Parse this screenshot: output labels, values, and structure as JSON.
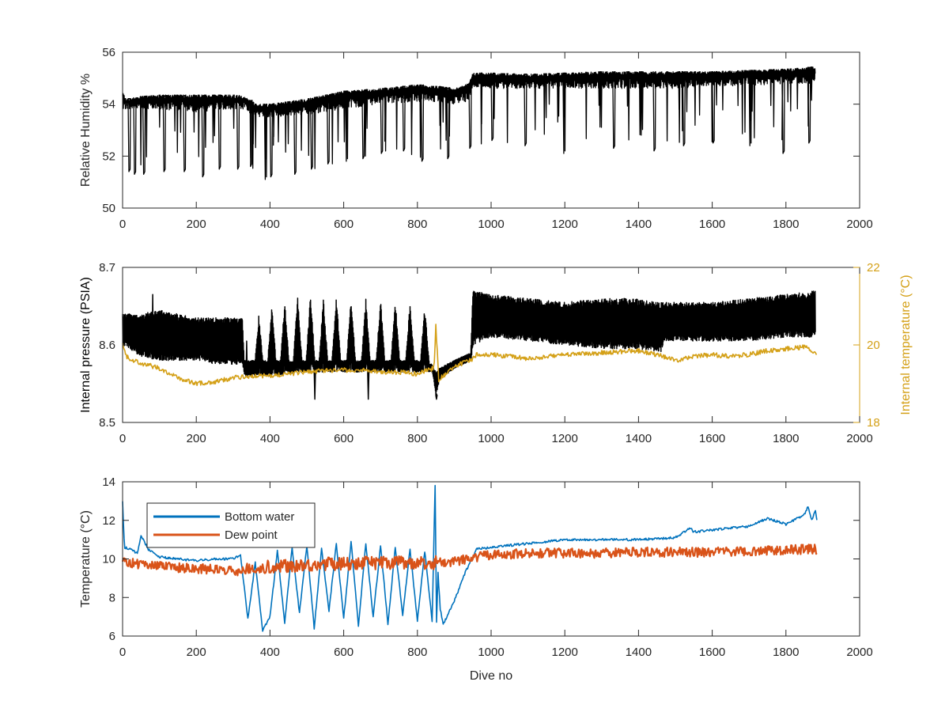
{
  "chart_data": [
    {
      "type": "line",
      "panel": "top",
      "title": "",
      "xlabel": "",
      "ylabel": "Relative Humidity %",
      "xlim": [
        0,
        2000
      ],
      "ylim": [
        50,
        56
      ],
      "xticks": [
        "0",
        "200",
        "400",
        "600",
        "800",
        "1000",
        "1200",
        "1400",
        "1600",
        "1800",
        "2000"
      ],
      "yticks": [
        "50",
        "52",
        "54",
        "56"
      ],
      "grid": false,
      "series": [
        {
          "color": "#000000",
          "style": "dense-spiky",
          "x": [
            0,
            10,
            50,
            100,
            200,
            300,
            330,
            360,
            400,
            500,
            600,
            700,
            800,
            850,
            900,
            940,
            950,
            1000,
            1100,
            1200,
            1300,
            1400,
            1500,
            1600,
            1700,
            1800,
            1850,
            1880
          ],
          "upper": [
            54.45,
            54.2,
            54.3,
            54.35,
            54.35,
            54.35,
            54.3,
            54.0,
            54.0,
            54.2,
            54.5,
            54.6,
            54.75,
            54.7,
            54.6,
            54.8,
            55.2,
            55.2,
            55.15,
            55.2,
            55.25,
            55.25,
            55.25,
            55.25,
            55.3,
            55.35,
            55.4,
            55.45
          ],
          "base": [
            53.8,
            53.8,
            53.8,
            53.8,
            53.7,
            53.8,
            53.8,
            53.5,
            53.5,
            53.6,
            53.8,
            54.0,
            54.1,
            54.1,
            54.0,
            54.1,
            54.6,
            54.6,
            54.6,
            54.6,
            54.6,
            54.6,
            54.6,
            54.7,
            54.7,
            54.8,
            54.8,
            54.8
          ],
          "dips": [
            [
              15,
              51.4
            ],
            [
              30,
              51.3
            ],
            [
              55,
              51.3
            ],
            [
              110,
              51.4
            ],
            [
              165,
              51.4
            ],
            [
              215,
              51.2
            ],
            [
              260,
              51.5
            ],
            [
              310,
              51.5
            ],
            [
              345,
              51.6
            ],
            [
              385,
              51.1
            ],
            [
              400,
              51.2
            ],
            [
              465,
              51.3
            ],
            [
              510,
              51.5
            ],
            [
              555,
              51.7
            ],
            [
              605,
              51.8
            ],
            [
              650,
              51.9
            ],
            [
              700,
              52.1
            ],
            [
              760,
              52.2
            ],
            [
              810,
              51.8
            ],
            [
              880,
              51.9
            ],
            [
              940,
              52.3
            ],
            [
              1000,
              52.6
            ],
            [
              1090,
              52.4
            ],
            [
              1195,
              52.1
            ],
            [
              1330,
              52.3
            ],
            [
              1440,
              52.2
            ],
            [
              1520,
              52.4
            ],
            [
              1600,
              52.5
            ],
            [
              1700,
              52.4
            ],
            [
              1790,
              52.1
            ],
            [
              1860,
              52.5
            ]
          ]
        }
      ]
    },
    {
      "type": "line",
      "panel": "middle",
      "title": "",
      "xlabel": "",
      "ylabel": "Internal pressure (PSIA)",
      "ylabel_right": "Internal temperature (°C)",
      "xlim": [
        0,
        2000
      ],
      "ylim": [
        8.5,
        8.7
      ],
      "ylim_right": [
        18,
        22
      ],
      "xticks": [
        "0",
        "200",
        "400",
        "600",
        "800",
        "1000",
        "1200",
        "1400",
        "1600",
        "1800",
        "2000"
      ],
      "yticks": [
        "8.5",
        "8.6",
        "8.7"
      ],
      "yticks_right": [
        "18",
        "20",
        "22"
      ],
      "right_axis_color": "#D4A017",
      "grid": false,
      "series": [
        {
          "axis": "left",
          "color": "#000000",
          "style": "dense-band",
          "x": [
            0,
            50,
            100,
            150,
            200,
            250,
            300,
            325,
            330,
            400,
            500,
            600,
            700,
            800,
            840,
            850,
            860,
            900,
            945,
            950,
            1000,
            1100,
            1200,
            1300,
            1400,
            1460,
            1470,
            1500,
            1600,
            1700,
            1800,
            1880
          ],
          "low": [
            8.6,
            8.585,
            8.58,
            8.58,
            8.58,
            8.575,
            8.575,
            8.575,
            8.56,
            8.56,
            8.565,
            8.565,
            8.565,
            8.565,
            8.565,
            8.535,
            8.555,
            8.57,
            8.58,
            8.6,
            8.61,
            8.605,
            8.6,
            8.595,
            8.595,
            8.59,
            8.605,
            8.605,
            8.605,
            8.605,
            8.61,
            8.61
          ],
          "high": [
            8.64,
            8.64,
            8.645,
            8.64,
            8.635,
            8.635,
            8.635,
            8.635,
            8.58,
            8.58,
            8.58,
            8.58,
            8.58,
            8.58,
            8.575,
            8.565,
            8.57,
            8.58,
            8.59,
            8.67,
            8.665,
            8.66,
            8.655,
            8.66,
            8.66,
            8.655,
            8.655,
            8.655,
            8.655,
            8.66,
            8.665,
            8.67
          ],
          "bursts": [
            [
              370,
              8.64
            ],
            [
              405,
              8.655
            ],
            [
              440,
              8.66
            ],
            [
              475,
              8.665
            ],
            [
              510,
              8.665
            ],
            [
              545,
              8.66
            ],
            [
              580,
              8.665
            ],
            [
              620,
              8.665
            ],
            [
              660,
              8.66
            ],
            [
              700,
              8.66
            ],
            [
              740,
              8.66
            ],
            [
              780,
              8.655
            ],
            [
              820,
              8.65
            ]
          ]
        },
        {
          "axis": "right",
          "color": "#D4A017",
          "x": [
            0,
            10,
            30,
            60,
            100,
            150,
            200,
            250,
            300,
            350,
            400,
            450,
            500,
            560,
            600,
            650,
            700,
            750,
            800,
            845,
            850,
            858,
            870,
            900,
            945,
            960,
            1000,
            1050,
            1100,
            1200,
            1300,
            1400,
            1450,
            1500,
            1550,
            1600,
            1650,
            1700,
            1750,
            1800,
            1850,
            1885
          ],
          "values": [
            20.1,
            19.7,
            19.6,
            19.5,
            19.4,
            19.15,
            19.0,
            19.05,
            19.15,
            19.2,
            19.2,
            19.25,
            19.3,
            19.35,
            19.35,
            19.35,
            19.3,
            19.3,
            19.25,
            19.4,
            20.5,
            19.1,
            19.2,
            19.45,
            19.6,
            19.75,
            19.75,
            19.7,
            19.65,
            19.75,
            19.8,
            19.85,
            19.75,
            19.6,
            19.7,
            19.75,
            19.7,
            19.75,
            19.85,
            19.9,
            19.95,
            19.8
          ]
        }
      ]
    },
    {
      "type": "line",
      "panel": "bottom",
      "title": "",
      "xlabel": "Dive no",
      "ylabel": "Temperature (°C)",
      "xlim": [
        0,
        2000
      ],
      "ylim": [
        6,
        14
      ],
      "xticks": [
        "0",
        "200",
        "400",
        "600",
        "800",
        "1000",
        "1200",
        "1400",
        "1600",
        "1800",
        "2000"
      ],
      "yticks": [
        "6",
        "8",
        "10",
        "12",
        "14"
      ],
      "grid": false,
      "legend": {
        "location": "top-left"
      },
      "series": [
        {
          "name": "Bottom water",
          "color": "#0072BD",
          "x": [
            0,
            5,
            20,
            40,
            50,
            70,
            100,
            150,
            200,
            250,
            300,
            320,
            340,
            360,
            380,
            400,
            420,
            440,
            460,
            480,
            500,
            520,
            540,
            560,
            580,
            600,
            620,
            640,
            660,
            680,
            700,
            720,
            740,
            760,
            780,
            800,
            820,
            840,
            848,
            852,
            856,
            862,
            870,
            900,
            930,
            960,
            1000,
            1100,
            1200,
            1300,
            1400,
            1500,
            1540,
            1550,
            1600,
            1700,
            1750,
            1800,
            1850,
            1860,
            1870,
            1880,
            1885
          ],
          "values": [
            13.0,
            10.6,
            10.5,
            10.3,
            11.2,
            10.5,
            10.1,
            10.0,
            9.9,
            10.0,
            10.0,
            10.2,
            6.9,
            9.8,
            6.3,
            7.0,
            10.4,
            6.7,
            10.6,
            7.2,
            10.7,
            6.4,
            10.5,
            7.3,
            10.8,
            6.9,
            10.9,
            6.5,
            10.8,
            7.0,
            10.7,
            6.6,
            10.6,
            7.1,
            10.5,
            6.8,
            10.4,
            6.8,
            13.8,
            6.7,
            9.3,
            7.4,
            6.6,
            7.8,
            9.3,
            10.5,
            10.6,
            10.8,
            11.0,
            11.0,
            11.0,
            11.1,
            11.6,
            11.4,
            11.5,
            11.7,
            12.1,
            11.8,
            12.3,
            12.7,
            12.0,
            12.5,
            11.9
          ]
        },
        {
          "name": "Dew point",
          "color": "#D95319",
          "style": "noisy",
          "x": [
            0,
            50,
            100,
            150,
            200,
            250,
            300,
            350,
            400,
            450,
            500,
            550,
            600,
            650,
            700,
            750,
            800,
            850,
            900,
            950,
            1000,
            1050,
            1100,
            1200,
            1300,
            1400,
            1500,
            1600,
            1700,
            1800,
            1850,
            1885
          ],
          "values": [
            9.9,
            9.7,
            9.65,
            9.55,
            9.5,
            9.45,
            9.45,
            9.55,
            9.6,
            9.65,
            9.7,
            9.75,
            9.75,
            9.8,
            9.8,
            9.8,
            9.8,
            9.8,
            9.85,
            10.05,
            10.2,
            10.25,
            10.3,
            10.3,
            10.3,
            10.35,
            10.35,
            10.35,
            10.4,
            10.45,
            10.5,
            10.5
          ]
        }
      ]
    }
  ]
}
